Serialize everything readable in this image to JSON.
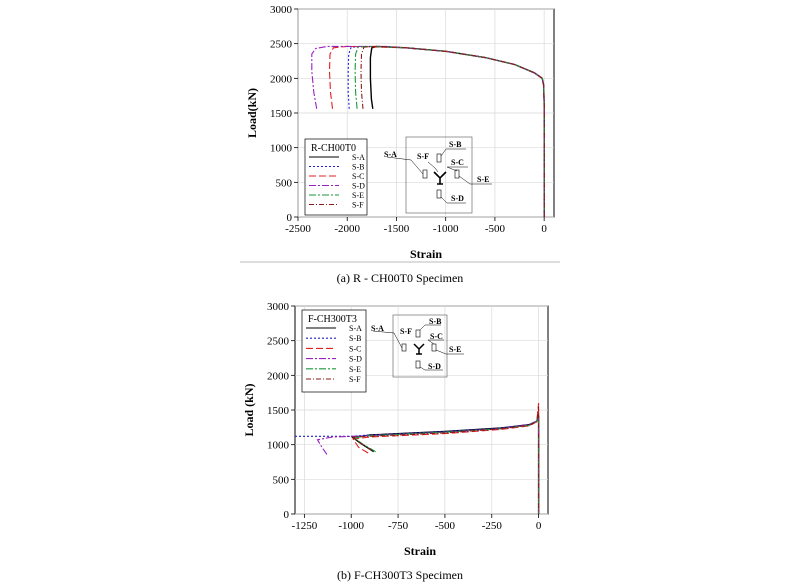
{
  "chart_data": [
    {
      "type": "line",
      "xlabel": "Strain",
      "ylabel": "Load(kN)",
      "xlim": [
        -2500,
        100
      ],
      "ylim": [
        0,
        3000
      ],
      "xticks": [
        -2500,
        -2000,
        -1500,
        -1000,
        -500,
        0
      ],
      "yticks": [
        0,
        500,
        1000,
        1500,
        2000,
        2500,
        3000
      ],
      "grid": true,
      "legend_title": "R-CH00T0",
      "legend_position": "bottom-left",
      "diagram_labels": [
        "S-A",
        "S-B",
        "S-C",
        "S-D",
        "S-E",
        "S-F"
      ],
      "caption": "(a) R - CH00T0 Specimen",
      "series": [
        {
          "name": "S-A",
          "color": "#000000",
          "dash": "",
          "points": [
            [
              -1740,
              1560
            ],
            [
              -1755,
              1700
            ],
            [
              -1765,
              2000
            ],
            [
              -1765,
              2300
            ],
            [
              -1750,
              2440
            ],
            [
              -1700,
              2460
            ],
            [
              -1400,
              2440
            ],
            [
              -1000,
              2390
            ],
            [
              -600,
              2300
            ],
            [
              -300,
              2200
            ],
            [
              -100,
              2080
            ],
            [
              -20,
              2000
            ],
            [
              -5,
              1900
            ],
            [
              0,
              1600
            ],
            [
              0,
              0
            ]
          ]
        },
        {
          "name": "S-B",
          "color": "#1f1fd0",
          "dash": "2,2",
          "points": [
            [
              -1980,
              1560
            ],
            [
              -1990,
              1800
            ],
            [
              -1990,
              2100
            ],
            [
              -1985,
              2350
            ],
            [
              -1960,
              2450
            ],
            [
              -1800,
              2460
            ],
            [
              -1400,
              2440
            ],
            [
              -1000,
              2390
            ],
            [
              -600,
              2300
            ],
            [
              -300,
              2200
            ],
            [
              -100,
              2080
            ],
            [
              -20,
              2000
            ],
            [
              -5,
              1900
            ],
            [
              0,
              1600
            ],
            [
              0,
              0
            ]
          ]
        },
        {
          "name": "S-C",
          "color": "#e02020",
          "dash": "7,3",
          "points": [
            [
              -2150,
              1560
            ],
            [
              -2170,
              1800
            ],
            [
              -2180,
              2100
            ],
            [
              -2175,
              2350
            ],
            [
              -2140,
              2440
            ],
            [
              -2000,
              2460
            ],
            [
              -1400,
              2440
            ],
            [
              -1000,
              2390
            ],
            [
              -600,
              2300
            ],
            [
              -300,
              2200
            ],
            [
              -100,
              2080
            ],
            [
              -20,
              2000
            ],
            [
              -5,
              1900
            ],
            [
              0,
              1600
            ],
            [
              0,
              0
            ]
          ]
        },
        {
          "name": "S-D",
          "color": "#9a20c0",
          "dash": "7,2,2,2",
          "points": [
            [
              -2310,
              1560
            ],
            [
              -2340,
              1800
            ],
            [
              -2360,
              2100
            ],
            [
              -2360,
              2350
            ],
            [
              -2320,
              2430
            ],
            [
              -2200,
              2460
            ],
            [
              -1600,
              2460
            ],
            [
              -1000,
              2390
            ],
            [
              -600,
              2300
            ],
            [
              -300,
              2200
            ],
            [
              -100,
              2080
            ],
            [
              -20,
              2000
            ],
            [
              -5,
              1900
            ],
            [
              0,
              1600
            ],
            [
              0,
              0
            ]
          ]
        },
        {
          "name": "S-E",
          "color": "#1a9a3a",
          "dash": "7,2,2,2",
          "points": [
            [
              -1900,
              1560
            ],
            [
              -1915,
              1800
            ],
            [
              -1920,
              2100
            ],
            [
              -1915,
              2350
            ],
            [
              -1890,
              2450
            ],
            [
              -1750,
              2460
            ],
            [
              -1400,
              2440
            ],
            [
              -1000,
              2390
            ],
            [
              -600,
              2300
            ],
            [
              -300,
              2200
            ],
            [
              -100,
              2080
            ],
            [
              -20,
              2000
            ],
            [
              -5,
              1900
            ],
            [
              0,
              1600
            ],
            [
              0,
              0
            ]
          ]
        },
        {
          "name": "S-F",
          "color": "#8b1a1a",
          "dash": "5,2,1,2",
          "points": [
            [
              -1840,
              1560
            ],
            [
              -1855,
              1800
            ],
            [
              -1860,
              2100
            ],
            [
              -1855,
              2350
            ],
            [
              -1830,
              2450
            ],
            [
              -1700,
              2460
            ],
            [
              -1400,
              2440
            ],
            [
              -1000,
              2390
            ],
            [
              -600,
              2300
            ],
            [
              -300,
              2200
            ],
            [
              -100,
              2080
            ],
            [
              -20,
              2000
            ],
            [
              -5,
              1900
            ],
            [
              0,
              1600
            ],
            [
              0,
              0
            ]
          ]
        }
      ]
    },
    {
      "type": "line",
      "xlabel": "Strain",
      "ylabel": "Load (kN)",
      "xlim": [
        -1300,
        50
      ],
      "ylim": [
        0,
        3000
      ],
      "xticks": [
        -1250,
        -1000,
        -750,
        -500,
        -250,
        0
      ],
      "yticks": [
        0,
        500,
        1000,
        1500,
        2000,
        2500,
        3000
      ],
      "grid": true,
      "legend_title": "F-CH300T3",
      "legend_position": "top-left",
      "diagram_labels": [
        "S-A",
        "S-B",
        "S-C",
        "S-D",
        "S-E",
        "S-F"
      ],
      "caption": "(b) F-CH300T3 Specimen",
      "series": [
        {
          "name": "S-A",
          "color": "#000000",
          "dash": "",
          "points": [
            [
              -880,
              900
            ],
            [
              -950,
              1020
            ],
            [
              -990,
              1100
            ],
            [
              -900,
              1140
            ],
            [
              -500,
              1190
            ],
            [
              -200,
              1240
            ],
            [
              -50,
              1290
            ],
            [
              -10,
              1340
            ],
            [
              0,
              1420
            ],
            [
              0,
              1200
            ],
            [
              0,
              0
            ]
          ]
        },
        {
          "name": "S-B",
          "color": "#1f1fd0",
          "dash": "2,2",
          "points": [
            [
              -1300,
              1120
            ],
            [
              -1100,
              1120
            ],
            [
              -1000,
              1120
            ],
            [
              -900,
              1140
            ],
            [
              -500,
              1190
            ],
            [
              -200,
              1240
            ],
            [
              -50,
              1290
            ],
            [
              -10,
              1340
            ],
            [
              0,
              1420
            ],
            [
              0,
              1200
            ],
            [
              0,
              0
            ]
          ]
        },
        {
          "name": "S-C",
          "color": "#e02020",
          "dash": "7,3",
          "points": [
            [
              -910,
              880
            ],
            [
              -960,
              960
            ],
            [
              -990,
              1080
            ],
            [
              -900,
              1110
            ],
            [
              -500,
              1160
            ],
            [
              -200,
              1220
            ],
            [
              -50,
              1270
            ],
            [
              -10,
              1330
            ],
            [
              0,
              1600
            ],
            [
              0,
              1200
            ],
            [
              0,
              0
            ]
          ]
        },
        {
          "name": "S-D",
          "color": "#9a20c0",
          "dash": "7,2,2,2",
          "points": [
            [
              -1130,
              860
            ],
            [
              -1160,
              980
            ],
            [
              -1180,
              1070
            ],
            [
              -1100,
              1110
            ],
            [
              -900,
              1130
            ],
            [
              -500,
              1180
            ],
            [
              -200,
              1230
            ],
            [
              -50,
              1290
            ],
            [
              -10,
              1340
            ],
            [
              0,
              1420
            ],
            [
              0,
              1200
            ],
            [
              0,
              0
            ]
          ]
        },
        {
          "name": "S-E",
          "color": "#1a9a3a",
          "dash": "7,2,2,2",
          "points": [
            [
              -870,
              900
            ],
            [
              -940,
              1010
            ],
            [
              -985,
              1100
            ],
            [
              -900,
              1130
            ],
            [
              -500,
              1180
            ],
            [
              -200,
              1230
            ],
            [
              -50,
              1280
            ],
            [
              -10,
              1340
            ],
            [
              0,
              1420
            ],
            [
              0,
              1200
            ],
            [
              0,
              0
            ]
          ]
        },
        {
          "name": "S-F",
          "color": "#8b1a1a",
          "dash": "5,2,1,2",
          "points": [
            [
              -890,
              920
            ],
            [
              -955,
              1030
            ],
            [
              -990,
              1110
            ],
            [
              -900,
              1120
            ],
            [
              -500,
              1170
            ],
            [
              -200,
              1230
            ],
            [
              -50,
              1280
            ],
            [
              -10,
              1330
            ],
            [
              0,
              1550
            ],
            [
              0,
              1200
            ],
            [
              0,
              0
            ]
          ]
        }
      ]
    }
  ]
}
